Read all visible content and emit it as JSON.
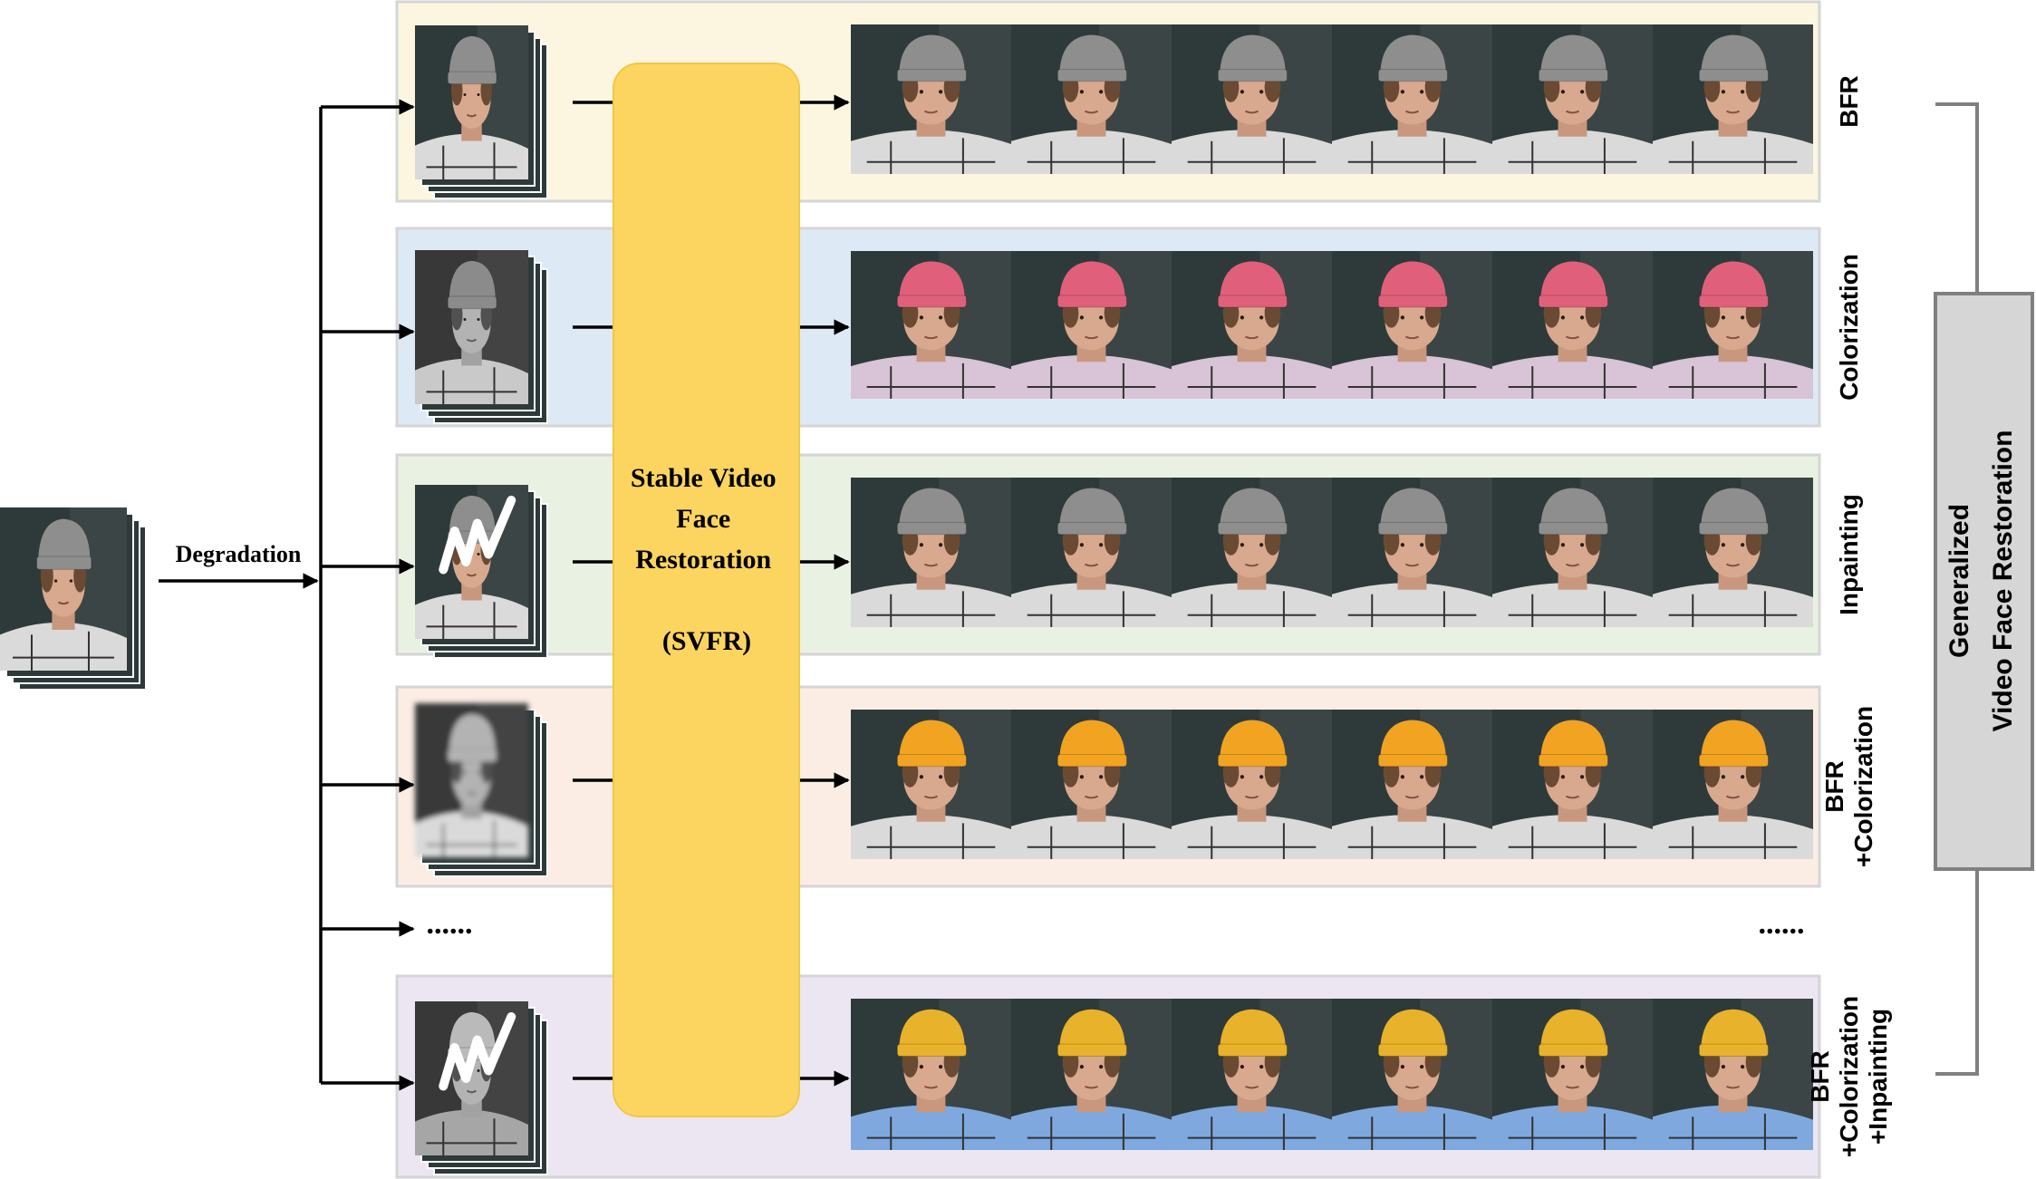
{
  "input": {
    "degradation_label": "Degradation"
  },
  "model": {
    "name_line1": "Stable Video",
    "name_line2": "Face",
    "name_line3": "Restoration",
    "abbrev": "(SVFR)",
    "color": "#FBD55F"
  },
  "tasks": [
    {
      "label_lines": [
        "BFR"
      ],
      "panel_color": "#FCF6E1",
      "frame_style": "color",
      "hat_color": "#8E8E8E",
      "shirt_color": "#DADADA",
      "mask": false
    },
    {
      "label_lines": [
        "Colorization"
      ],
      "panel_color": "#DEE9F6",
      "frame_style": "gray",
      "hat_color": "#E0607C",
      "shirt_color": "#D9C3D6",
      "mask": false
    },
    {
      "label_lines": [
        "Inpainting"
      ],
      "panel_color": "#E9F1E2",
      "frame_style": "color-masked",
      "hat_color": "#8E8E8E",
      "shirt_color": "#DADADA",
      "mask": true
    },
    {
      "label_lines": [
        "BFR",
        "+Colorization"
      ],
      "panel_color": "#FBEDE4",
      "frame_style": "gray-blurred",
      "hat_color": "#F2A321",
      "shirt_color": "#DADADA",
      "mask": false
    },
    {
      "label_lines": [
        "BFR",
        "+Colorization",
        "+Inpainting"
      ],
      "panel_color": "#ECE6F3",
      "frame_style": "gray-masked",
      "hat_color": "#E8B22A",
      "shirt_color": "#7FA9DE",
      "mask": true
    }
  ],
  "ellipsis": "......",
  "summary": {
    "line1": "Generalized",
    "line2": "Video Face Restoration"
  }
}
